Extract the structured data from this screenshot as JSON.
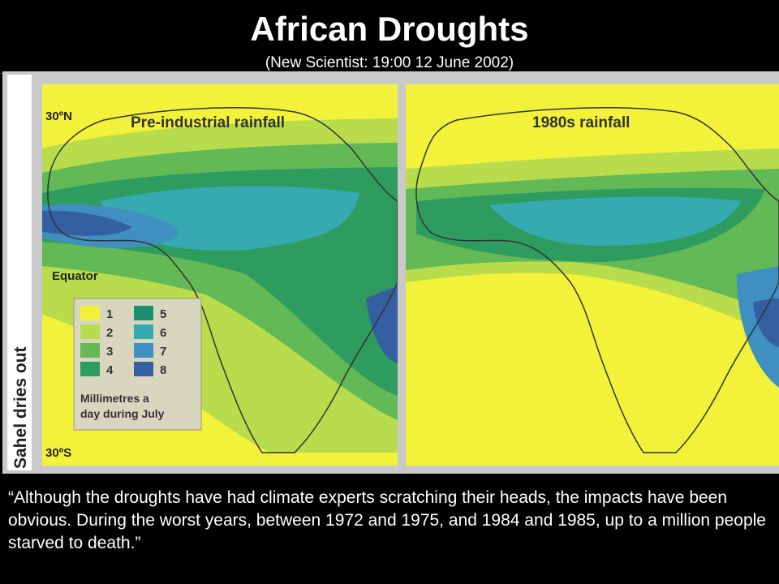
{
  "slide": {
    "title": "African Droughts",
    "subtitle": "(New Scientist: 19:00 12 June 2002)",
    "quote": "“Although the droughts have had climate experts scratching their heads, the impacts have been obvious. During the worst years, between 1972 and 1975, and 1984 and 1985, up to a million people starved to death.”"
  },
  "figure": {
    "side_label": "Sahel dries out",
    "panels": [
      {
        "title": "Pre-industrial rainfall",
        "lat_top": "30ºN",
        "equator": "Equator",
        "lat_bottom": "30ºS"
      },
      {
        "title": "1980s rainfall"
      }
    ],
    "legend": {
      "items": [
        {
          "label": "1",
          "color": "#f2f23a"
        },
        {
          "label": "2",
          "color": "#b9dc4d"
        },
        {
          "label": "3",
          "color": "#62b956"
        },
        {
          "label": "4",
          "color": "#2f9c5f"
        },
        {
          "label": "5",
          "color": "#1e8f6e"
        },
        {
          "label": "6",
          "color": "#35aab0"
        },
        {
          "label": "7",
          "color": "#3f8fc0"
        },
        {
          "label": "8",
          "color": "#345fa0"
        }
      ],
      "caption_line1": "Millimetres a",
      "caption_line2": "day during July"
    }
  }
}
